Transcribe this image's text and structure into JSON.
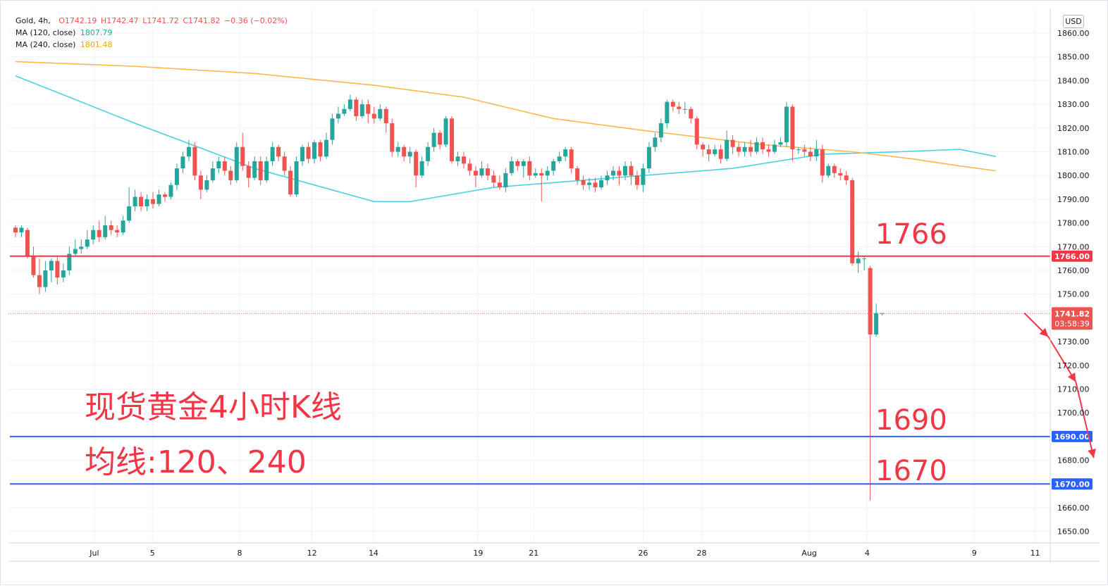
{
  "legend": {
    "symbol": "Gold, 4h,",
    "open": "O1742.19",
    "high": "H1742.47",
    "low": "L1741.72",
    "close": "C1741.82",
    "change": "−0.36 (−0.02%)",
    "ma120_label": "MA (120, close)",
    "ma120_value": "1807.79",
    "ma240_label": "MA (240, close)",
    "ma240_value": "1801.48"
  },
  "currency": "USD",
  "colors": {
    "up": "#26a69a",
    "down": "#ef5350",
    "ma120": "#4dd0e1",
    "ma240": "#ffb74d",
    "resistance": "#f23645",
    "support": "#2962ff",
    "annotation": "#f23645"
  },
  "price_tag": {
    "value": "1741.82",
    "countdown": "03:58:39"
  },
  "annotations": {
    "title": "现货黄金4小时K线",
    "subtitle": "均线:120、240",
    "level_1766": "1766",
    "level_1690": "1690",
    "level_1670": "1670"
  },
  "chart_data": {
    "type": "candlestick",
    "title": "现货黄金4小时K线",
    "ylim": [
      1643,
      1867
    ],
    "y_ticks": [
      1860,
      1850,
      1840,
      1830,
      1820,
      1810,
      1800,
      1790,
      1780,
      1770,
      1760,
      1750,
      1730,
      1720,
      1710,
      1700,
      1680,
      1660,
      1650
    ],
    "x_tick_labels": [
      "Jul",
      "5",
      "8",
      "12",
      "14",
      "19",
      "21",
      "26",
      "28",
      "Aug",
      "4",
      "9",
      "11"
    ],
    "x_tick_slots": [
      13.2,
      22.9,
      37.5,
      49.6,
      59.9,
      77.4,
      86.7,
      105.0,
      114.8,
      132.8,
      142.5,
      160.4,
      170.6
    ],
    "horizontal_lines": [
      {
        "price": 1766.0,
        "label": "1766.00",
        "kind": "resistance"
      },
      {
        "price": 1690.0,
        "label": "1690.00",
        "kind": "support"
      },
      {
        "price": 1670.0,
        "label": "1670.00",
        "kind": "support"
      }
    ],
    "current_price": 1741.82,
    "candles": [
      [
        1778,
        1776,
        1779,
        1774
      ],
      [
        1776,
        1778,
        1779,
        1774
      ],
      [
        1777,
        1766,
        1778,
        1765
      ],
      [
        1766,
        1758,
        1770,
        1757
      ],
      [
        1758,
        1753,
        1765,
        1750
      ],
      [
        1753,
        1760,
        1764,
        1751
      ],
      [
        1760,
        1764,
        1765,
        1755
      ],
      [
        1764,
        1757,
        1766,
        1754
      ],
      [
        1757,
        1760,
        1763,
        1755
      ],
      [
        1760,
        1767,
        1770,
        1758
      ],
      [
        1767,
        1769,
        1773,
        1766
      ],
      [
        1769,
        1770,
        1773,
        1767
      ],
      [
        1770,
        1773,
        1777,
        1769
      ],
      [
        1773,
        1777,
        1779,
        1771
      ],
      [
        1777,
        1774,
        1781,
        1772
      ],
      [
        1774,
        1779,
        1783,
        1773
      ],
      [
        1779,
        1777,
        1781,
        1775
      ],
      [
        1777,
        1776,
        1779,
        1774
      ],
      [
        1776,
        1781,
        1783,
        1775
      ],
      [
        1781,
        1787,
        1795,
        1780
      ],
      [
        1787,
        1791,
        1794,
        1785
      ],
      [
        1791,
        1787,
        1793,
        1785
      ],
      [
        1787,
        1790,
        1792,
        1785
      ],
      [
        1790,
        1788,
        1793,
        1786
      ],
      [
        1788,
        1792,
        1794,
        1787
      ],
      [
        1792,
        1791,
        1793,
        1789
      ],
      [
        1791,
        1796,
        1797,
        1790
      ],
      [
        1796,
        1803,
        1805,
        1794
      ],
      [
        1803,
        1808,
        1810,
        1801
      ],
      [
        1808,
        1812,
        1815,
        1806
      ],
      [
        1812,
        1800,
        1814,
        1798
      ],
      [
        1800,
        1794,
        1802,
        1790
      ],
      [
        1794,
        1798,
        1800,
        1793
      ],
      [
        1798,
        1803,
        1806,
        1797
      ],
      [
        1803,
        1806,
        1808,
        1801
      ],
      [
        1806,
        1802,
        1808,
        1800
      ],
      [
        1802,
        1798,
        1804,
        1796
      ],
      [
        1798,
        1812,
        1814,
        1797
      ],
      [
        1812,
        1804,
        1818,
        1802
      ],
      [
        1804,
        1799,
        1806,
        1795
      ],
      [
        1799,
        1806,
        1808,
        1798
      ],
      [
        1806,
        1798,
        1808,
        1796
      ],
      [
        1798,
        1806,
        1808,
        1797
      ],
      [
        1806,
        1812,
        1814,
        1804
      ],
      [
        1812,
        1808,
        1813,
        1806
      ],
      [
        1808,
        1802,
        1810,
        1800
      ],
      [
        1802,
        1792,
        1804,
        1791
      ],
      [
        1792,
        1806,
        1808,
        1791
      ],
      [
        1806,
        1812,
        1813,
        1804
      ],
      [
        1812,
        1807,
        1814,
        1805
      ],
      [
        1807,
        1814,
        1815,
        1805
      ],
      [
        1814,
        1808,
        1815,
        1806
      ],
      [
        1808,
        1815,
        1818,
        1807
      ],
      [
        1815,
        1824,
        1826,
        1813
      ],
      [
        1824,
        1826,
        1829,
        1822
      ],
      [
        1826,
        1828,
        1830,
        1825
      ],
      [
        1828,
        1832,
        1834,
        1827
      ],
      [
        1832,
        1825,
        1833,
        1823
      ],
      [
        1825,
        1830,
        1832,
        1824
      ],
      [
        1830,
        1826,
        1832,
        1822
      ],
      [
        1826,
        1824,
        1829,
        1822
      ],
      [
        1824,
        1828,
        1830,
        1823
      ],
      [
        1828,
        1822,
        1829,
        1818
      ],
      [
        1822,
        1810,
        1824,
        1808
      ],
      [
        1810,
        1812,
        1814,
        1808
      ],
      [
        1812,
        1808,
        1813,
        1806
      ],
      [
        1808,
        1810,
        1812,
        1805
      ],
      [
        1810,
        1800,
        1811,
        1795
      ],
      [
        1800,
        1806,
        1808,
        1799
      ],
      [
        1806,
        1812,
        1814,
        1804
      ],
      [
        1812,
        1818,
        1820,
        1810
      ],
      [
        1818,
        1813,
        1819,
        1811
      ],
      [
        1813,
        1824,
        1825,
        1812
      ],
      [
        1824,
        1806,
        1825,
        1805
      ],
      [
        1806,
        1808,
        1810,
        1804
      ],
      [
        1808,
        1805,
        1810,
        1803
      ],
      [
        1805,
        1802,
        1807,
        1800
      ],
      [
        1802,
        1800,
        1804,
        1795
      ],
      [
        1800,
        1803,
        1806,
        1799
      ],
      [
        1803,
        1800,
        1805,
        1798
      ],
      [
        1800,
        1797,
        1802,
        1795
      ],
      [
        1797,
        1795,
        1800,
        1794
      ],
      [
        1795,
        1801,
        1803,
        1793
      ],
      [
        1801,
        1806,
        1808,
        1800
      ],
      [
        1806,
        1804,
        1807,
        1802
      ],
      [
        1804,
        1806,
        1807,
        1799
      ],
      [
        1806,
        1800,
        1808,
        1798
      ],
      [
        1800,
        1801,
        1803,
        1799
      ],
      [
        1801,
        1800,
        1803,
        1789
      ],
      [
        1800,
        1802,
        1804,
        1798
      ],
      [
        1802,
        1806,
        1807,
        1800
      ],
      [
        1806,
        1808,
        1810,
        1805
      ],
      [
        1808,
        1811,
        1812,
        1806
      ],
      [
        1811,
        1803,
        1812,
        1801
      ],
      [
        1803,
        1798,
        1804,
        1796
      ],
      [
        1798,
        1796,
        1800,
        1794
      ],
      [
        1796,
        1797,
        1799,
        1794
      ],
      [
        1797,
        1795,
        1799,
        1793
      ],
      [
        1795,
        1798,
        1800,
        1794
      ],
      [
        1798,
        1800,
        1802,
        1796
      ],
      [
        1800,
        1802,
        1804,
        1798
      ],
      [
        1802,
        1800,
        1804,
        1796
      ],
      [
        1800,
        1804,
        1806,
        1798
      ],
      [
        1804,
        1800,
        1806,
        1796
      ],
      [
        1800,
        1796,
        1802,
        1794
      ],
      [
        1796,
        1803,
        1805,
        1793
      ],
      [
        1803,
        1812,
        1814,
        1801
      ],
      [
        1812,
        1816,
        1818,
        1810
      ],
      [
        1816,
        1822,
        1824,
        1814
      ],
      [
        1822,
        1831,
        1832,
        1820
      ],
      [
        1831,
        1829,
        1832,
        1827
      ],
      [
        1829,
        1828,
        1831,
        1826
      ],
      [
        1828,
        1828,
        1831,
        1826
      ],
      [
        1828,
        1824,
        1829,
        1822
      ],
      [
        1824,
        1813,
        1825,
        1811
      ],
      [
        1813,
        1811,
        1814,
        1808
      ],
      [
        1811,
        1809,
        1813,
        1806
      ],
      [
        1809,
        1811,
        1813,
        1808
      ],
      [
        1811,
        1807,
        1813,
        1805
      ],
      [
        1807,
        1815,
        1819,
        1806
      ],
      [
        1815,
        1812,
        1817,
        1809
      ],
      [
        1812,
        1810,
        1814,
        1808
      ],
      [
        1810,
        1812,
        1814,
        1808
      ],
      [
        1812,
        1810,
        1815,
        1808
      ],
      [
        1810,
        1814,
        1816,
        1809
      ],
      [
        1814,
        1811,
        1816,
        1809
      ],
      [
        1811,
        1810,
        1813,
        1808
      ],
      [
        1810,
        1813,
        1815,
        1809
      ],
      [
        1813,
        1814,
        1816,
        1812
      ],
      [
        1814,
        1829,
        1831,
        1812
      ],
      [
        1829,
        1811,
        1830,
        1806
      ],
      [
        1811,
        1811,
        1812,
        1809
      ],
      [
        1811,
        1810,
        1813,
        1808
      ],
      [
        1810,
        1808,
        1812,
        1806
      ],
      [
        1808,
        1811,
        1815,
        1806
      ],
      [
        1811,
        1800,
        1813,
        1797
      ],
      [
        1800,
        1804,
        1805,
        1799
      ],
      [
        1804,
        1801,
        1805,
        1799
      ],
      [
        1801,
        1800,
        1803,
        1798
      ],
      [
        1800,
        1798,
        1802,
        1796
      ],
      [
        1798,
        1763,
        1799,
        1762
      ],
      [
        1763,
        1765,
        1768,
        1759
      ],
      [
        1765,
        1765,
        1766,
        1760
      ],
      [
        1761,
        1733,
        1762,
        1663
      ],
      [
        1733,
        1742,
        1746,
        1732
      ],
      [
        1742,
        1742,
        1742,
        1741
      ]
    ],
    "series": [
      {
        "name": "MA (120, close)",
        "points": [
          [
            0,
            1842
          ],
          [
            20,
            1822
          ],
          [
            40,
            1803
          ],
          [
            60,
            1789
          ],
          [
            66,
            1789
          ],
          [
            80,
            1795
          ],
          [
            100,
            1799
          ],
          [
            120,
            1803
          ],
          [
            135,
            1809
          ],
          [
            148,
            1810
          ],
          [
            158,
            1811
          ],
          [
            164,
            1808
          ]
        ]
      },
      {
        "name": "MA (240, close)",
        "points": [
          [
            0,
            1848
          ],
          [
            20,
            1846
          ],
          [
            40,
            1843
          ],
          [
            60,
            1838
          ],
          [
            75,
            1833
          ],
          [
            90,
            1824
          ],
          [
            105,
            1819
          ],
          [
            125,
            1813
          ],
          [
            140,
            1810
          ],
          [
            150,
            1807
          ],
          [
            158,
            1804
          ],
          [
            164,
            1802
          ]
        ]
      }
    ],
    "arrow_path": [
      [
        1742,
        168.8
      ],
      [
        1732,
        172.8
      ],
      [
        1713,
        177.4
      ],
      [
        1681,
        180.4
      ]
    ]
  }
}
